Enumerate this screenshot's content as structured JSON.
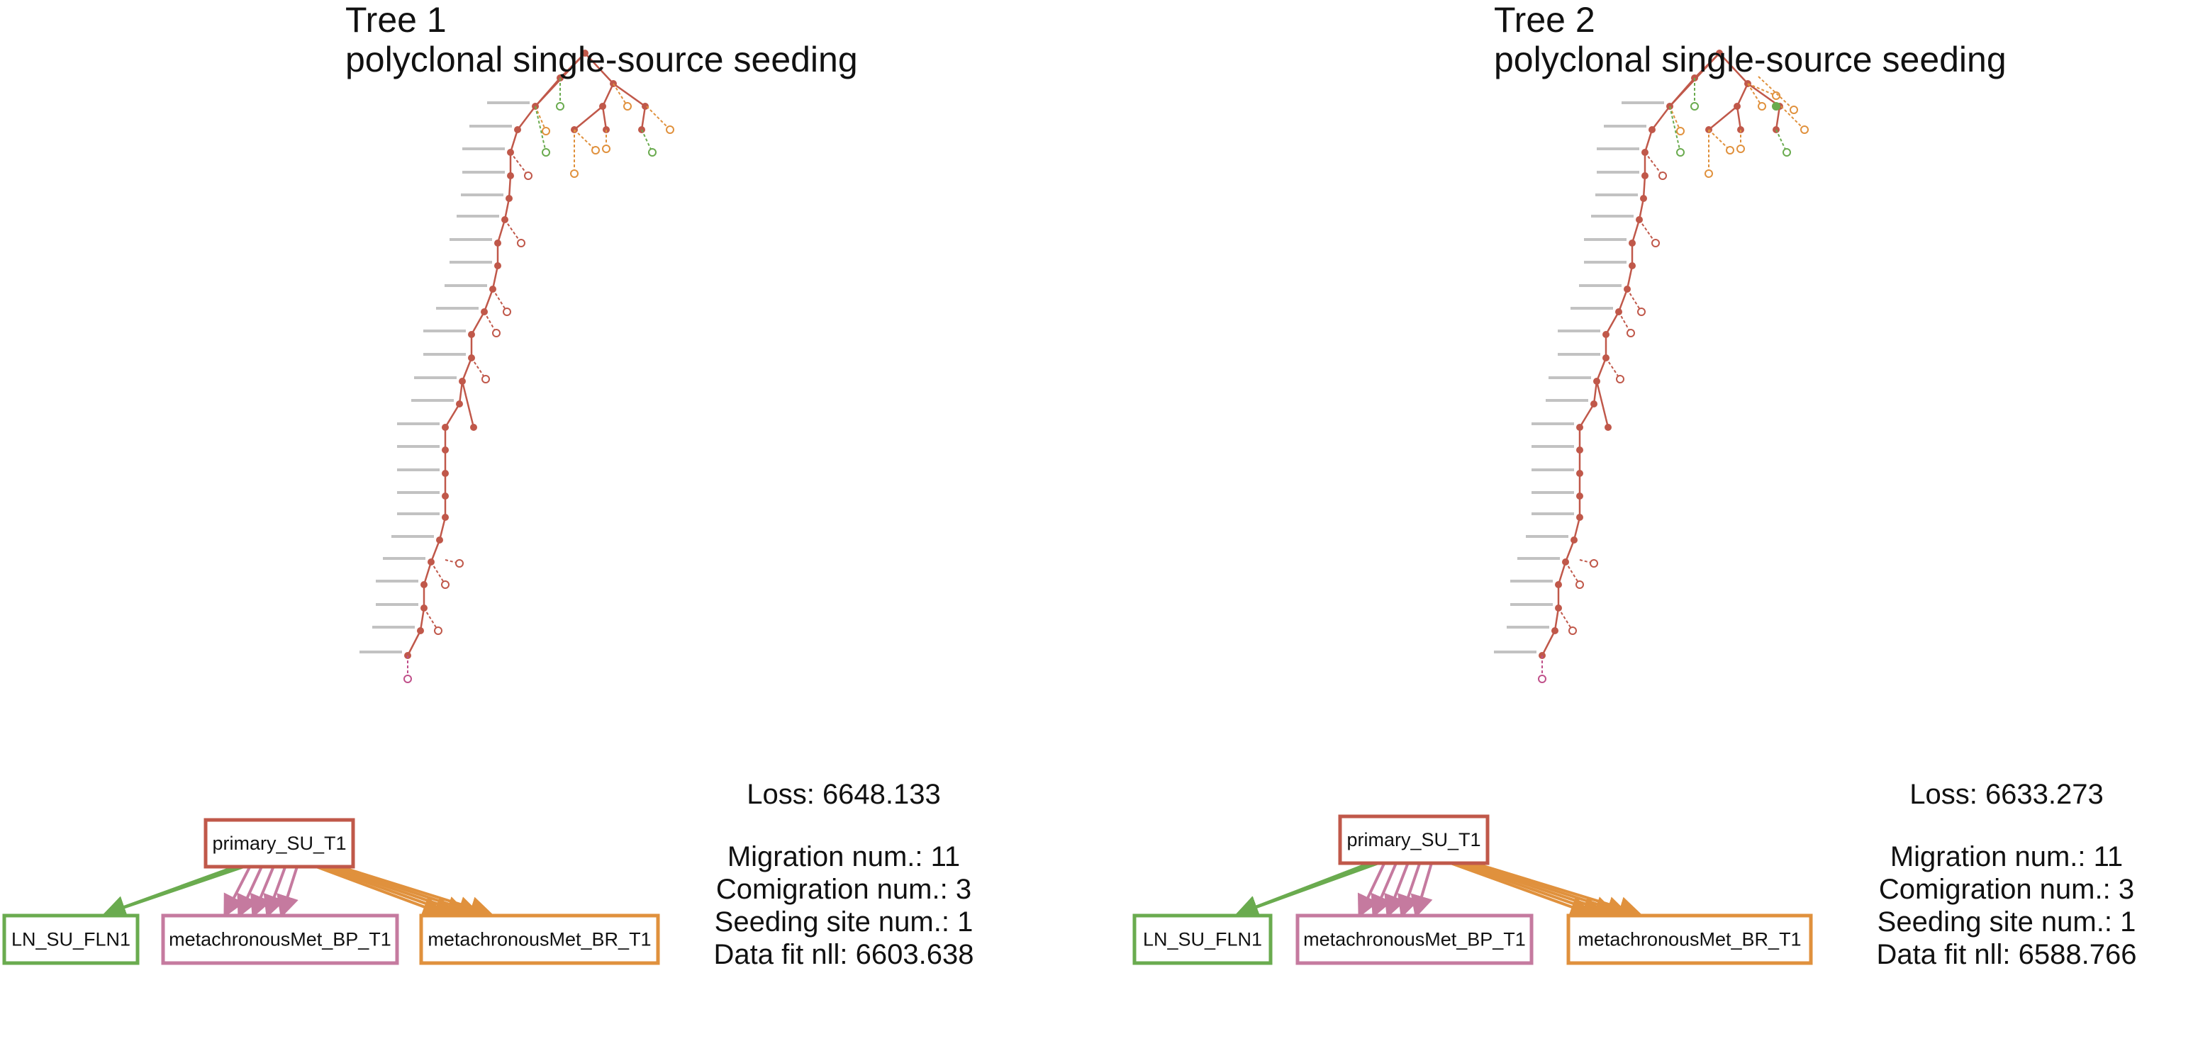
{
  "colors": {
    "primary": "#c0584a",
    "ln": "#6aab4f",
    "bp": "#c57a9f",
    "br": "#e0913d"
  },
  "panels": [
    {
      "title": "Tree 1",
      "subtitle": "polyclonal single-source seeding",
      "loss_label": "Loss: 6648.133",
      "migration_label": "Migration num.: 11",
      "comigration_label": "Comigration num.: 3",
      "seeding_label": "Seeding site num.: 1",
      "datafit_label": "Data fit nll: 6603.638",
      "migration_graph": {
        "primary": "primary_SU_T1",
        "targets": [
          "LN_SU_FLN1",
          "metachronousMet_BP_T1",
          "metachronousMet_BR_T1"
        ]
      }
    },
    {
      "title": "Tree 2",
      "subtitle": "polyclonal single-source seeding",
      "loss_label": "Loss: 6633.273",
      "migration_label": "Migration num.: 11",
      "comigration_label": "Comigration num.: 3",
      "seeding_label": "Seeding site num.: 1",
      "datafit_label": "Data fit nll: 6588.766",
      "migration_graph": {
        "primary": "primary_SU_T1",
        "targets": [
          "LN_SU_FLN1",
          "metachronousMet_BP_T1",
          "metachronousMet_BR_T1"
        ]
      }
    }
  ]
}
